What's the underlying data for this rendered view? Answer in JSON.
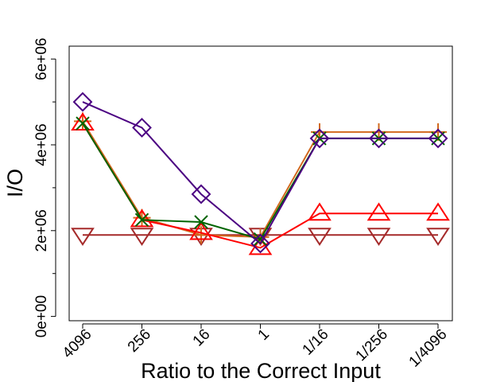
{
  "chart_data": {
    "type": "line",
    "xlabel": "Ratio to the Correct Input",
    "ylabel": "I/O",
    "categories": [
      "4096",
      "256",
      "16",
      "1",
      "1/16",
      "1/256",
      "1/4096"
    ],
    "yticks": [
      "0e+00",
      "2e+06",
      "4e+06",
      "6e+06"
    ],
    "ylim": [
      -100000,
      6300000
    ],
    "ytick_values": [
      0,
      2000000,
      4000000,
      6000000
    ],
    "minor_ytick_values": [
      1000000,
      3000000,
      5000000
    ],
    "grid": false,
    "series": [
      {
        "marker": "triangle-down",
        "color": "#a52a2a",
        "values": [
          1900000,
          1900000,
          1900000,
          1900000,
          1900000,
          1900000,
          1900000
        ]
      },
      {
        "marker": "plus",
        "color": "#d2691e",
        "values": [
          4550000,
          2300000,
          1900000,
          1850000,
          4300000,
          4300000,
          4300000
        ]
      },
      {
        "marker": "triangle-up",
        "color": "#ff0000",
        "values": [
          4500000,
          2250000,
          1950000,
          1600000,
          2400000,
          2400000,
          2400000
        ]
      },
      {
        "marker": "cross",
        "color": "#006400",
        "values": [
          4500000,
          2250000,
          2200000,
          1800000,
          4150000,
          4150000,
          4150000
        ]
      },
      {
        "marker": "diamond",
        "color": "#4b0082",
        "values": [
          5000000,
          4400000,
          2850000,
          1700000,
          4150000,
          4150000,
          4150000
        ]
      }
    ]
  }
}
